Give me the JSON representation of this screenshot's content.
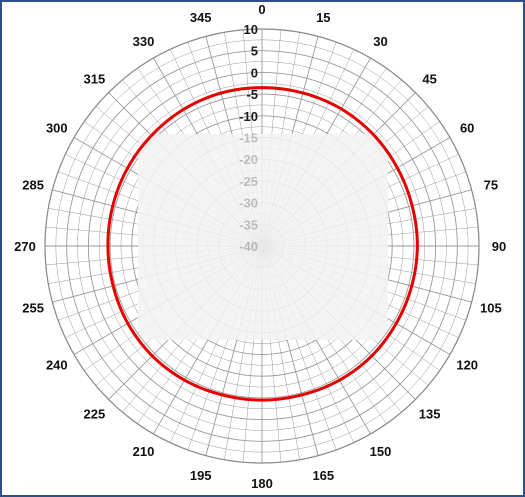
{
  "chart_data": {
    "type": "polar-line",
    "title": "",
    "angle_unit": "degrees",
    "angle_direction": "clockwise",
    "angle_zero": "top",
    "angle_ticks": [
      0,
      15,
      30,
      45,
      60,
      75,
      90,
      105,
      120,
      135,
      150,
      165,
      180,
      195,
      210,
      225,
      240,
      255,
      270,
      285,
      300,
      315,
      330,
      345
    ],
    "angle_tick_labels": [
      "0",
      "15",
      "30",
      "45",
      "60",
      "75",
      "90",
      "105",
      "120",
      "135",
      "150",
      "165",
      "180",
      "195",
      "210",
      "225",
      "240",
      "255",
      "270",
      "285",
      "300",
      "315",
      "330",
      "345"
    ],
    "radial_range": [
      -40,
      10
    ],
    "radial_ticks": [
      10,
      5,
      0,
      -5,
      -10,
      -15,
      -20,
      -25,
      -30,
      -35,
      -40
    ],
    "radial_tick_labels": [
      "10",
      "5",
      "0",
      "-5",
      "-10",
      "-15",
      "-20",
      "-25",
      "-30",
      "-35",
      "-40"
    ],
    "grid": true,
    "series": [
      {
        "color": "#e60000",
        "angles": [
          0,
          15,
          30,
          45,
          60,
          75,
          90,
          105,
          120,
          135,
          150,
          165,
          180,
          195,
          210,
          225,
          240,
          255,
          270,
          285,
          300,
          315,
          330,
          345,
          360
        ],
        "values": [
          -3.5,
          -3.5,
          -3.5,
          -3.7,
          -4,
          -4.2,
          -4.2,
          -4.3,
          -4.3,
          -4.2,
          -4.3,
          -4.5,
          -4.5,
          -4.5,
          -4.3,
          -4.2,
          -4.3,
          -4.5,
          -4.5,
          -4.4,
          -4.2,
          -4,
          -3.7,
          -3.5,
          -3.5
        ]
      }
    ]
  },
  "colors": {
    "frame": "#2f4f87",
    "grid": "#9a9a9a",
    "trace": "#e60000",
    "overlay": "#f2f2f2"
  }
}
